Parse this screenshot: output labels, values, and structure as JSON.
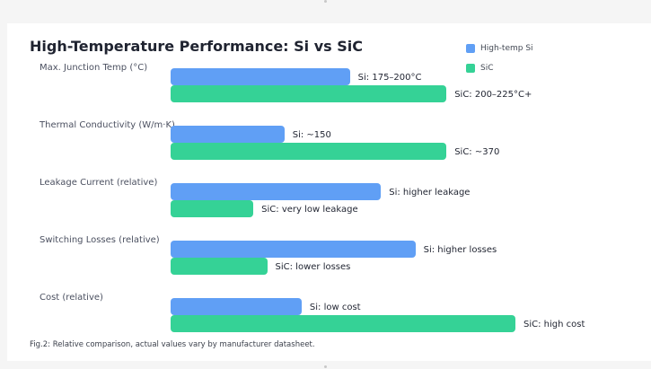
{
  "chart_data": {
    "type": "bar",
    "orientation": "horizontal",
    "title": "High-Temperature Performance: Si vs SiC",
    "categories": [
      "Max. Junction Temp (°C)",
      "Thermal Conductivity (W/m·K)",
      "Leakage Current (relative)",
      "Switching Losses (relative)",
      "Cost (relative)"
    ],
    "series": [
      {
        "name": "High-temp Si",
        "color": "#609ff5",
        "values": [
          0.52,
          0.33,
          0.61,
          0.71,
          0.38
        ],
        "labels": [
          "Si: 175–200°C",
          "Si: ~150",
          "Si: higher leakage",
          "Si: higher losses",
          "Si: low cost"
        ]
      },
      {
        "name": "SiC",
        "color": "#35d296",
        "values": [
          0.8,
          0.8,
          0.24,
          0.28,
          1.0
        ],
        "labels": [
          "SiC: 200–225°C+",
          "SiC: ~370",
          "SiC: very low leakage",
          "SiC: lower losses",
          "SiC: high cost"
        ]
      }
    ],
    "legend_position": "top-right",
    "caption": "Fig.2: Relative comparison, actual values vary by manufacturer datasheet."
  }
}
